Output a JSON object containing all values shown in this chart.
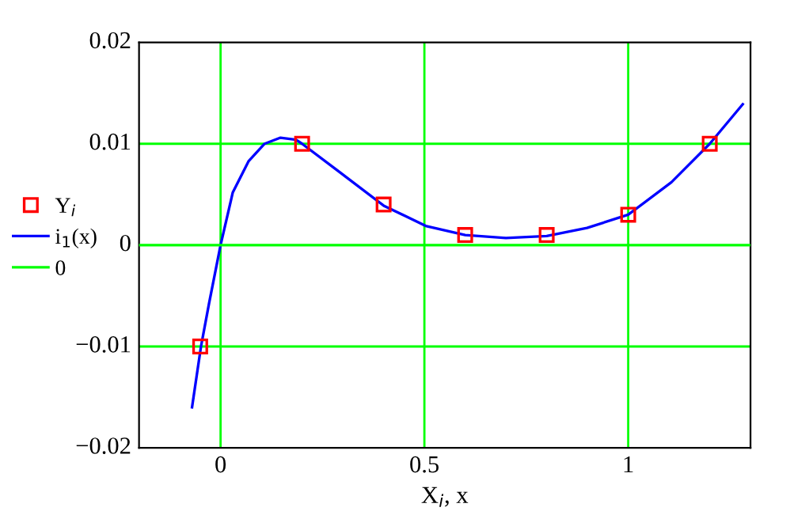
{
  "chart_data": {
    "type": "line",
    "xlabel": "X$_{i}$, x",
    "xlim": [
      -0.2,
      1.3
    ],
    "ylim": [
      -0.02,
      0.02
    ],
    "xticks": [
      0,
      0.5,
      1
    ],
    "yticks": [
      {
        "value": -0.02,
        "label": "−0.02"
      },
      {
        "value": -0.01,
        "label": "−0.01"
      },
      0,
      0.01,
      0.02
    ],
    "ref_lines": [
      {
        "axis": "x",
        "value": 0,
        "color": "#00ff00"
      },
      {
        "axis": "x",
        "value": 0.5,
        "color": "#00ff00"
      },
      {
        "axis": "x",
        "value": 1,
        "color": "#00ff00"
      },
      {
        "axis": "y",
        "value": -0.01,
        "color": "#00ff00"
      },
      {
        "axis": "y",
        "value": 0.01,
        "color": "#00ff00"
      }
    ],
    "legend": "left",
    "series": [
      {
        "name": "Y$_{i}$",
        "type": "scatter",
        "marker": "square",
        "color": "#ff0000",
        "x": [
          -0.05,
          0.2,
          0.4,
          0.6,
          0.8,
          1.0,
          1.2
        ],
        "values": [
          -0.01,
          0.01,
          0.004,
          0.001,
          0.001,
          0.003,
          0.01
        ]
      },
      {
        "name": "i$_{1}$(x)",
        "type": "line",
        "marker": "none",
        "color": "#0000ff",
        "x": [
          -0.07,
          -0.048,
          -0.028,
          0.0,
          0.03,
          0.069,
          0.108,
          0.147,
          0.185,
          0.2,
          0.289,
          0.4,
          0.503,
          0.6,
          0.7,
          0.8,
          0.899,
          1.0,
          1.106,
          1.2,
          1.281
        ],
        "values": [
          -0.016,
          -0.01,
          -0.0057,
          0.0,
          0.0052,
          0.0083,
          0.01,
          0.0106,
          0.0104,
          0.01,
          0.0073,
          0.0039,
          0.0019,
          0.001,
          0.0007,
          0.0009,
          0.0017,
          0.003,
          0.0062,
          0.01,
          0.0139
        ]
      },
      {
        "name": "0",
        "type": "line",
        "marker": "none",
        "color": "#00ff00",
        "x": [
          -0.2,
          1.3
        ],
        "values": [
          0,
          0
        ]
      }
    ]
  }
}
